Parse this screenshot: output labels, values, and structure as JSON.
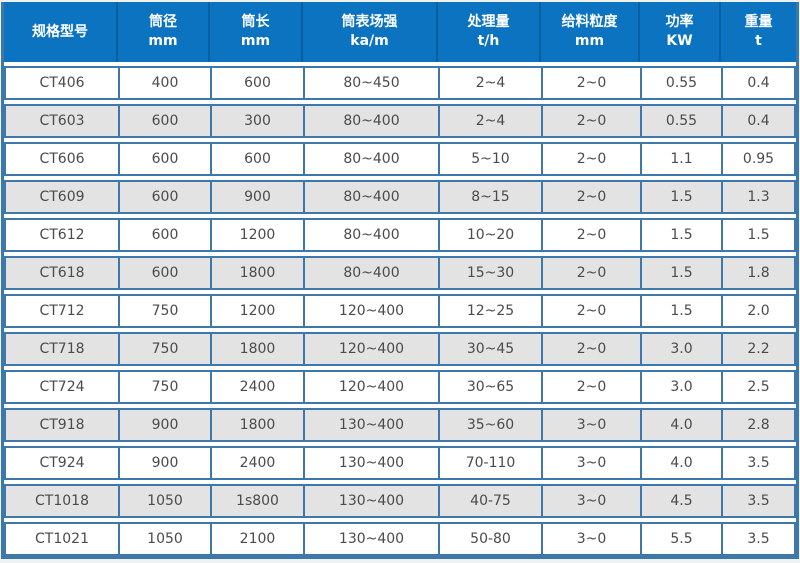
{
  "chart_data": {
    "type": "table",
    "title": "",
    "columns": [
      {
        "label": "规格型号",
        "unit": ""
      },
      {
        "label": "筒径",
        "unit": "mm"
      },
      {
        "label": "筒长",
        "unit": "mm"
      },
      {
        "label": "筒表场强",
        "unit": "ka/m"
      },
      {
        "label": "处理量",
        "unit": "t/h"
      },
      {
        "label": "给料粒度",
        "unit": "mm"
      },
      {
        "label": "功率",
        "unit": "KW"
      },
      {
        "label": "重量",
        "unit": "t"
      }
    ],
    "rows": [
      [
        "CT406",
        "400",
        "600",
        "80~450",
        "2~4",
        "2~0",
        "0.55",
        "0.4"
      ],
      [
        "CT603",
        "600",
        "300",
        "80~400",
        "2~4",
        "2~0",
        "0.55",
        "0.4"
      ],
      [
        "CT606",
        "600",
        "600",
        "80~400",
        "5~10",
        "2~0",
        "1.1",
        "0.95"
      ],
      [
        "CT609",
        "600",
        "900",
        "80~400",
        "8~15",
        "2~0",
        "1.5",
        "1.3"
      ],
      [
        "CT612",
        "600",
        "1200",
        "80~400",
        "10~20",
        "2~0",
        "1.5",
        "1.5"
      ],
      [
        "CT618",
        "600",
        "1800",
        "80~400",
        "15~30",
        "2~0",
        "1.5",
        "1.8"
      ],
      [
        "CT712",
        "750",
        "1200",
        "120~400",
        "12~25",
        "2~0",
        "1.5",
        "2.0"
      ],
      [
        "CT718",
        "750",
        "1800",
        "120~400",
        "30~45",
        "2~0",
        "3.0",
        "2.2"
      ],
      [
        "CT724",
        "750",
        "2400",
        "120~400",
        "30~65",
        "2~0",
        "3.0",
        "2.5"
      ],
      [
        "CT918",
        "900",
        "1800",
        "130~400",
        "35~60",
        "3~0",
        "4.0",
        "2.8"
      ],
      [
        "CT924",
        "900",
        "2400",
        "130~400",
        "70-110",
        "3~0",
        "4.0",
        "3.5"
      ],
      [
        "CT1018",
        "1050",
        "1s800",
        "130~400",
        "40-75",
        "3~0",
        "4.5",
        "3.5"
      ],
      [
        "CT1021",
        "1050",
        "2100",
        "130~400",
        "50-80",
        "3~0",
        "5.5",
        "3.5"
      ]
    ]
  },
  "colors": {
    "header_bg": "#0b73c0",
    "header_separator": "#0a5f9f",
    "border": "#3e78aa",
    "row_bg": "#ffffff",
    "row_alt_bg": "#e3e3e3",
    "cell_text": "#4b4b4b",
    "header_text": "#ffffff",
    "page_bg": "#f0f1f1"
  }
}
